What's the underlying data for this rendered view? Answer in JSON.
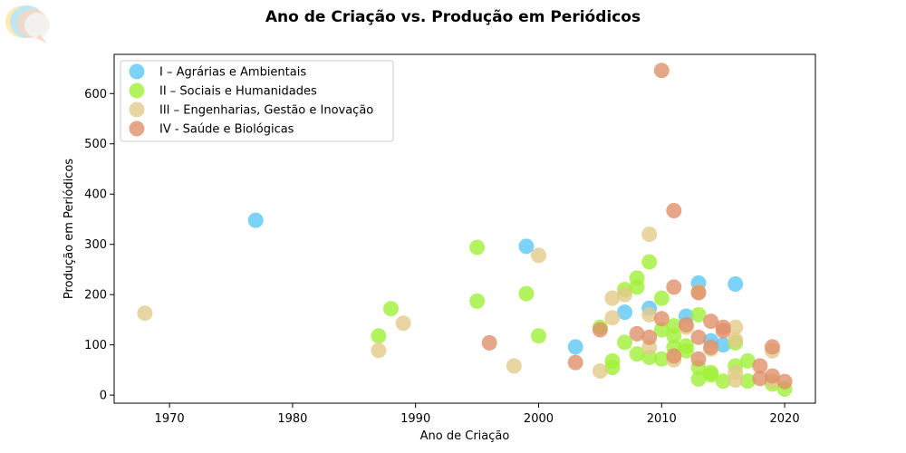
{
  "chart_data": {
    "type": "scatter",
    "title": "Ano de Criação vs. Produção em Periódicos",
    "xlabel": "Ano de Criação",
    "ylabel": "Produção em Periódicos",
    "xlim": [
      1965.5,
      2022.5
    ],
    "ylim": [
      -16,
      678
    ],
    "xticks": [
      1970,
      1980,
      1990,
      2000,
      2010,
      2020
    ],
    "yticks": [
      0,
      100,
      200,
      300,
      400,
      500,
      600
    ],
    "grid": false,
    "legend_position": "top-left",
    "series": [
      {
        "name": "I – Agrárias e Ambientais",
        "color": "#5bc8f5",
        "points": [
          {
            "x": 1977,
            "y": 348
          },
          {
            "x": 1999,
            "y": 296
          },
          {
            "x": 2003,
            "y": 96
          },
          {
            "x": 2007,
            "y": 165
          },
          {
            "x": 2009,
            "y": 173
          },
          {
            "x": 2012,
            "y": 157
          },
          {
            "x": 2013,
            "y": 223
          },
          {
            "x": 2014,
            "y": 108
          },
          {
            "x": 2015,
            "y": 100
          },
          {
            "x": 2016,
            "y": 221
          }
        ]
      },
      {
        "name": "II – Sociais e Humanidades",
        "color": "#a0f037",
        "points": [
          {
            "x": 1987,
            "y": 118
          },
          {
            "x": 1988,
            "y": 172
          },
          {
            "x": 1995,
            "y": 294
          },
          {
            "x": 1995,
            "y": 187
          },
          {
            "x": 1999,
            "y": 202
          },
          {
            "x": 2000,
            "y": 118
          },
          {
            "x": 2005,
            "y": 135
          },
          {
            "x": 2006,
            "y": 68
          },
          {
            "x": 2006,
            "y": 55
          },
          {
            "x": 2007,
            "y": 105
          },
          {
            "x": 2007,
            "y": 210
          },
          {
            "x": 2008,
            "y": 233
          },
          {
            "x": 2008,
            "y": 215
          },
          {
            "x": 2008,
            "y": 82
          },
          {
            "x": 2009,
            "y": 265
          },
          {
            "x": 2009,
            "y": 75
          },
          {
            "x": 2010,
            "y": 193
          },
          {
            "x": 2010,
            "y": 130
          },
          {
            "x": 2010,
            "y": 72
          },
          {
            "x": 2011,
            "y": 138
          },
          {
            "x": 2011,
            "y": 118
          },
          {
            "x": 2011,
            "y": 95
          },
          {
            "x": 2012,
            "y": 98
          },
          {
            "x": 2012,
            "y": 88
          },
          {
            "x": 2013,
            "y": 160
          },
          {
            "x": 2013,
            "y": 55
          },
          {
            "x": 2013,
            "y": 32
          },
          {
            "x": 2014,
            "y": 45
          },
          {
            "x": 2014,
            "y": 40
          },
          {
            "x": 2015,
            "y": 28
          },
          {
            "x": 2016,
            "y": 104
          },
          {
            "x": 2016,
            "y": 58
          },
          {
            "x": 2017,
            "y": 68
          },
          {
            "x": 2017,
            "y": 28
          },
          {
            "x": 2019,
            "y": 22
          },
          {
            "x": 2020,
            "y": 12
          }
        ]
      },
      {
        "name": "III – Engenharias, Gestão e Inovação",
        "color": "#e2cb8a",
        "points": [
          {
            "x": 1968,
            "y": 163
          },
          {
            "x": 1987,
            "y": 89
          },
          {
            "x": 1989,
            "y": 143
          },
          {
            "x": 1998,
            "y": 58
          },
          {
            "x": 2000,
            "y": 278
          },
          {
            "x": 2005,
            "y": 48
          },
          {
            "x": 2006,
            "y": 193
          },
          {
            "x": 2006,
            "y": 154
          },
          {
            "x": 2007,
            "y": 200
          },
          {
            "x": 2009,
            "y": 320
          },
          {
            "x": 2009,
            "y": 160
          },
          {
            "x": 2009,
            "y": 95
          },
          {
            "x": 2011,
            "y": 70
          },
          {
            "x": 2012,
            "y": 135
          },
          {
            "x": 2013,
            "y": 205
          },
          {
            "x": 2014,
            "y": 92
          },
          {
            "x": 2016,
            "y": 135
          },
          {
            "x": 2016,
            "y": 110
          },
          {
            "x": 2016,
            "y": 45
          },
          {
            "x": 2016,
            "y": 30
          },
          {
            "x": 2019,
            "y": 88
          },
          {
            "x": 2019,
            "y": 28
          }
        ]
      },
      {
        "name": "IV - Saúde e Biológicas",
        "color": "#e0906a",
        "points": [
          {
            "x": 1996,
            "y": 104
          },
          {
            "x": 2003,
            "y": 65
          },
          {
            "x": 2005,
            "y": 130
          },
          {
            "x": 2008,
            "y": 122
          },
          {
            "x": 2009,
            "y": 115
          },
          {
            "x": 2010,
            "y": 646
          },
          {
            "x": 2010,
            "y": 152
          },
          {
            "x": 2011,
            "y": 367
          },
          {
            "x": 2011,
            "y": 215
          },
          {
            "x": 2011,
            "y": 78
          },
          {
            "x": 2012,
            "y": 140
          },
          {
            "x": 2013,
            "y": 204
          },
          {
            "x": 2013,
            "y": 115
          },
          {
            "x": 2013,
            "y": 72
          },
          {
            "x": 2014,
            "y": 147
          },
          {
            "x": 2014,
            "y": 95
          },
          {
            "x": 2015,
            "y": 135
          },
          {
            "x": 2015,
            "y": 128
          },
          {
            "x": 2018,
            "y": 58
          },
          {
            "x": 2018,
            "y": 33
          },
          {
            "x": 2019,
            "y": 96
          },
          {
            "x": 2019,
            "y": 38
          },
          {
            "x": 2020,
            "y": 27
          }
        ]
      }
    ]
  }
}
